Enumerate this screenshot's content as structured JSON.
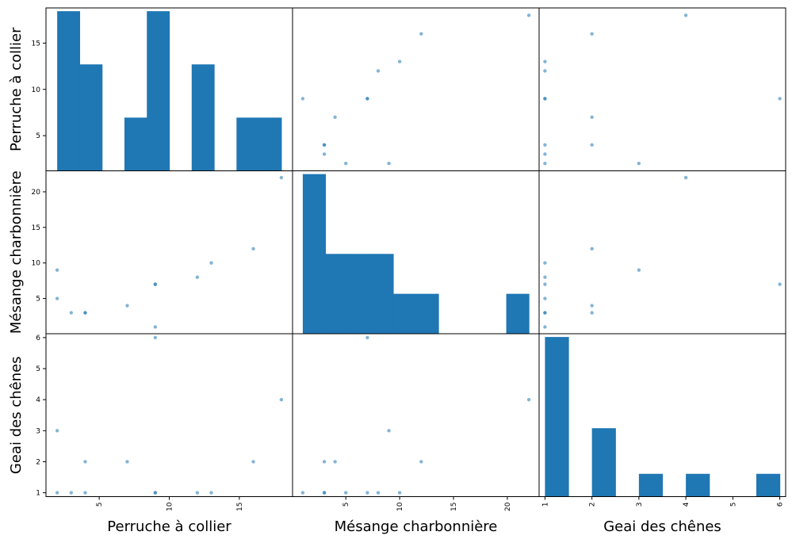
{
  "chart_data": {
    "type": "scatter",
    "variables": [
      "Perruche à collier",
      "Mésange charbonnière",
      "Geai des chênes"
    ],
    "points": {
      "Perruche à collier": [
        2,
        2,
        3,
        4,
        4,
        7,
        9,
        9,
        9,
        12,
        13,
        16,
        18
      ],
      "Mésange charbonnière": [
        5,
        9,
        3,
        3,
        3,
        4,
        1,
        7,
        7,
        8,
        10,
        12,
        22
      ],
      "Geai des chênes": [
        1,
        3,
        1,
        1,
        2,
        2,
        1,
        6,
        1,
        1,
        1,
        2,
        4
      ]
    },
    "hist_bins": 10,
    "diagonal": "hist",
    "axis_ranges": {
      "Perruche à collier": [
        1.2,
        18.8
      ],
      "Mésange charbonnière": [
        0.05,
        22.95
      ],
      "Geai des chênes": [
        0.875,
        6.125
      ]
    },
    "ticks": {
      "Perruche à collier": [
        5,
        10,
        15
      ],
      "Mésange charbonnière": [
        5,
        10,
        15,
        20
      ],
      "Geai des chênes": [
        1,
        2,
        3,
        4,
        5,
        6
      ]
    },
    "grid": false,
    "legend": "none",
    "colors": {
      "bar": "#1f77b4",
      "point": "#1f77b4",
      "frame": "#000000"
    }
  }
}
